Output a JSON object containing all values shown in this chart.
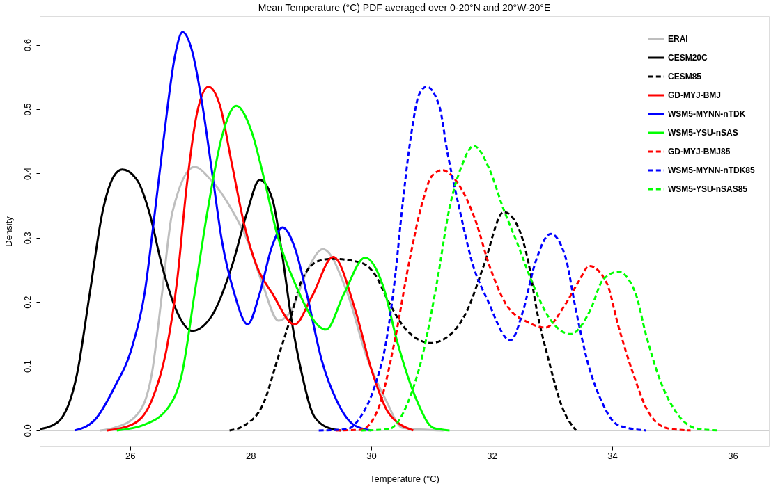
{
  "chart_data": {
    "type": "line",
    "title": "Mean Temperature (°C) PDF averaged over 0-20°N and 20°W-20°E",
    "xlabel": "Temperature (°C)",
    "ylabel": "Density",
    "xlim": [
      24.5,
      36.6
    ],
    "ylim": [
      -0.025,
      0.645
    ],
    "xticks": [
      26,
      28,
      30,
      32,
      34,
      36
    ],
    "yticks": [
      {
        "value": 0,
        "label": "0.0"
      },
      0.1,
      0.2,
      0.3,
      0.4,
      0.5,
      0.6
    ],
    "grid": false,
    "legend": "top right",
    "ref_lines": [
      {
        "axis": "y",
        "value": 0,
        "color": "#c0c0c0",
        "line_style": "solid"
      }
    ],
    "series": [
      {
        "name": "ERAI",
        "color": "#bebebe",
        "line_style": "solid",
        "x": [
          25.5,
          25.74,
          26.12,
          26.36,
          26.53,
          26.7,
          27.07,
          27.32,
          27.69,
          27.94,
          28.19,
          28.46,
          28.68,
          28.93,
          29.2,
          29.6,
          29.92,
          30.25,
          30.52,
          31.2
        ],
        "values": [
          0,
          0.004,
          0.025,
          0.088,
          0.213,
          0.339,
          0.41,
          0.392,
          0.343,
          0.297,
          0.23,
          0.171,
          0.188,
          0.247,
          0.282,
          0.215,
          0.116,
          0.046,
          0.004,
          0
        ]
      },
      {
        "name": "CESM20C",
        "color": "#000000",
        "line_style": "solid",
        "x": [
          24.5,
          24.79,
          25.12,
          25.33,
          25.54,
          25.74,
          25.87,
          26.12,
          26.32,
          26.53,
          26.78,
          27.03,
          27.36,
          27.69,
          27.94,
          28.15,
          28.36,
          28.52,
          28.68,
          28.85,
          29.06,
          29.35,
          29.5
        ],
        "values": [
          0.002,
          0.012,
          0.088,
          0.213,
          0.339,
          0.397,
          0.406,
          0.389,
          0.339,
          0.256,
          0.184,
          0.155,
          0.179,
          0.256,
          0.339,
          0.39,
          0.36,
          0.276,
          0.171,
          0.088,
          0.021,
          0.002,
          0
        ]
      },
      {
        "name": "CESM85",
        "color": "#000000",
        "line_style": "dashed",
        "x": [
          27.65,
          27.9,
          28.23,
          28.44,
          28.65,
          28.85,
          29.14,
          29.36,
          29.83,
          30.06,
          30.29,
          30.57,
          30.99,
          31.31,
          31.59,
          31.87,
          32.2,
          32.43,
          32.61,
          32.75,
          32.94,
          33.17,
          33.4
        ],
        "values": [
          0,
          0.008,
          0.046,
          0.109,
          0.171,
          0.234,
          0.264,
          0.267,
          0.261,
          0.243,
          0.2,
          0.158,
          0.136,
          0.149,
          0.186,
          0.257,
          0.34,
          0.318,
          0.261,
          0.186,
          0.111,
          0.036,
          0
        ]
      },
      {
        "name": "GD-MYJ-BMJ",
        "color": "#ff0000",
        "line_style": "solid",
        "x": [
          25.62,
          26.03,
          26.36,
          26.61,
          26.78,
          26.94,
          27.11,
          27.3,
          27.49,
          27.69,
          27.9,
          28.1,
          28.36,
          28.73,
          29.02,
          29.37,
          29.74,
          30.01,
          30.29,
          30.7
        ],
        "values": [
          0,
          0.009,
          0.047,
          0.129,
          0.233,
          0.381,
          0.494,
          0.535,
          0.506,
          0.414,
          0.318,
          0.256,
          0.213,
          0.165,
          0.209,
          0.27,
          0.186,
          0.093,
          0.027,
          0
        ]
      },
      {
        "name": "WSM5-MYNN-nTDK",
        "color": "#0000ff",
        "line_style": "solid",
        "x": [
          25.08,
          25.41,
          25.74,
          26.03,
          26.24,
          26.41,
          26.57,
          26.74,
          26.87,
          27.03,
          27.2,
          27.36,
          27.52,
          27.73,
          27.95,
          28.15,
          28.36,
          28.53,
          28.73,
          28.93,
          29.18,
          29.43,
          29.72,
          30.0
        ],
        "values": [
          0,
          0.016,
          0.067,
          0.129,
          0.213,
          0.339,
          0.464,
          0.581,
          0.62,
          0.59,
          0.506,
          0.402,
          0.297,
          0.213,
          0.165,
          0.213,
          0.288,
          0.316,
          0.285,
          0.213,
          0.109,
          0.046,
          0.008,
          0
        ]
      },
      {
        "name": "WSM5-YSU-nSAS",
        "color": "#00ff00",
        "line_style": "solid",
        "x": [
          25.78,
          26.24,
          26.65,
          26.86,
          27.07,
          27.28,
          27.52,
          27.76,
          28.02,
          28.23,
          28.44,
          28.73,
          29.25,
          29.55,
          29.9,
          30.2,
          30.43,
          30.76,
          31.03,
          31.3
        ],
        "values": [
          0,
          0.009,
          0.038,
          0.088,
          0.213,
          0.339,
          0.456,
          0.505,
          0.464,
          0.389,
          0.305,
          0.23,
          0.157,
          0.213,
          0.269,
          0.224,
          0.139,
          0.046,
          0.004,
          0
        ]
      },
      {
        "name": "GD-MYJ-BMJ85",
        "color": "#ff0000",
        "line_style": "dashed",
        "x": [
          29.41,
          29.83,
          30.11,
          30.39,
          30.62,
          30.85,
          31.0,
          31.18,
          31.45,
          31.73,
          31.96,
          32.24,
          32.61,
          32.89,
          33.22,
          33.45,
          33.62,
          33.91,
          34.1,
          34.33,
          34.61,
          34.93,
          35.3
        ],
        "values": [
          0,
          0.001,
          0.032,
          0.139,
          0.257,
          0.355,
          0.395,
          0.405,
          0.383,
          0.327,
          0.257,
          0.196,
          0.168,
          0.16,
          0.196,
          0.233,
          0.256,
          0.229,
          0.163,
          0.093,
          0.027,
          0.003,
          0
        ]
      },
      {
        "name": "WSM5-MYNN-nTDK85",
        "color": "#0000ff",
        "line_style": "dashed",
        "x": [
          29.13,
          29.6,
          29.83,
          30.06,
          30.25,
          30.39,
          30.52,
          30.66,
          30.8,
          30.92,
          31.13,
          31.27,
          31.45,
          31.69,
          31.92,
          32.31,
          32.52,
          32.71,
          32.98,
          33.22,
          33.4,
          33.59,
          33.82,
          34.1,
          34.56
        ],
        "values": [
          0,
          0.002,
          0.022,
          0.069,
          0.139,
          0.233,
          0.351,
          0.458,
          0.524,
          0.535,
          0.505,
          0.43,
          0.351,
          0.257,
          0.205,
          0.14,
          0.186,
          0.257,
          0.306,
          0.271,
          0.186,
          0.107,
          0.046,
          0.008,
          0
        ]
      },
      {
        "name": "WSM5-YSU-nSAS85",
        "color": "#00ff00",
        "line_style": "dashed",
        "x": [
          29.83,
          30.29,
          30.62,
          30.85,
          31.08,
          31.31,
          31.5,
          31.7,
          31.96,
          32.19,
          32.43,
          32.66,
          32.94,
          33.31,
          33.63,
          33.85,
          34.1,
          34.38,
          34.56,
          34.79,
          35.07,
          35.4,
          35.75
        ],
        "values": [
          0,
          0.002,
          0.046,
          0.116,
          0.224,
          0.351,
          0.411,
          0.443,
          0.407,
          0.346,
          0.29,
          0.233,
          0.177,
          0.15,
          0.186,
          0.235,
          0.247,
          0.215,
          0.149,
          0.079,
          0.027,
          0.003,
          0
        ]
      }
    ]
  }
}
